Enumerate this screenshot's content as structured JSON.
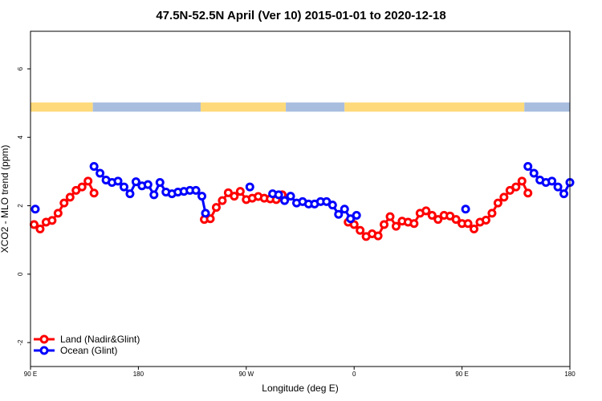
{
  "chart_data": {
    "type": "line",
    "title": "47.5N-52.5N April (Ver 10)   2015-01-01 to 2020-12-18",
    "xlabel": "Longitude (deg E)",
    "ylabel": "XCO2 - MLO trend (ppm)",
    "xlim": [
      90,
      540
    ],
    "ylim": [
      -2.7,
      7.1
    ],
    "x_ticks": [
      {
        "value": 90,
        "label": "90 E"
      },
      {
        "value": 180,
        "label": "180"
      },
      {
        "value": 270,
        "label": "90 W"
      },
      {
        "value": 360,
        "label": "0"
      },
      {
        "value": 450,
        "label": "90 E"
      },
      {
        "value": 540,
        "label": "180"
      }
    ],
    "y_ticks": [
      {
        "value": -2,
        "label": "-2"
      },
      {
        "value": 0,
        "label": "0"
      },
      {
        "value": 2,
        "label": "2"
      },
      {
        "value": 4,
        "label": "4"
      },
      {
        "value": 6,
        "label": "6"
      }
    ],
    "surface_strip": {
      "y_range": [
        4.75,
        5.02
      ],
      "land_color": "#FFDA7A",
      "ocean_color": "#A9BEDF",
      "segments": [
        {
          "type": "land",
          "from": 90,
          "to": 142
        },
        {
          "type": "ocean",
          "from": 142,
          "to": 232
        },
        {
          "type": "land",
          "from": 232,
          "to": 303
        },
        {
          "type": "ocean",
          "from": 303,
          "to": 352
        },
        {
          "type": "land",
          "from": 352,
          "to": 502
        },
        {
          "type": "ocean",
          "from": 502,
          "to": 540
        }
      ]
    },
    "series": [
      {
        "name": "Land (Nadir&Glint)",
        "color": "#FF0000",
        "segments": [
          [
            [
              93,
              1.45
            ],
            [
              98,
              1.32
            ],
            [
              103,
              1.52
            ],
            [
              108,
              1.57
            ],
            [
              113,
              1.78
            ],
            [
              118,
              2.08
            ],
            [
              123,
              2.25
            ],
            [
              128,
              2.45
            ],
            [
              133,
              2.55
            ],
            [
              138,
              2.72
            ],
            [
              143,
              2.37
            ]
          ],
          [
            [
              235,
              1.6
            ],
            [
              240,
              1.62
            ],
            [
              245,
              1.95
            ],
            [
              250,
              2.15
            ],
            [
              255,
              2.38
            ],
            [
              260,
              2.28
            ],
            [
              265,
              2.42
            ],
            [
              270,
              2.18
            ],
            [
              275,
              2.22
            ],
            [
              280,
              2.27
            ],
            [
              285,
              2.22
            ],
            [
              290,
              2.2
            ],
            [
              295,
              2.18
            ],
            [
              300,
              2.32
            ]
          ],
          [
            [
              355,
              1.52
            ],
            [
              360,
              1.45
            ],
            [
              365,
              1.28
            ],
            [
              370,
              1.1
            ],
            [
              375,
              1.18
            ],
            [
              380,
              1.12
            ],
            [
              385,
              1.45
            ],
            [
              390,
              1.68
            ],
            [
              395,
              1.4
            ],
            [
              400,
              1.55
            ],
            [
              405,
              1.52
            ],
            [
              410,
              1.48
            ],
            [
              415,
              1.78
            ],
            [
              420,
              1.85
            ],
            [
              425,
              1.72
            ],
            [
              430,
              1.6
            ],
            [
              435,
              1.72
            ],
            [
              440,
              1.7
            ],
            [
              445,
              1.6
            ],
            [
              450,
              1.48
            ],
            [
              455,
              1.48
            ],
            [
              460,
              1.32
            ],
            [
              465,
              1.52
            ],
            [
              470,
              1.58
            ],
            [
              475,
              1.78
            ],
            [
              480,
              2.08
            ],
            [
              485,
              2.25
            ],
            [
              490,
              2.45
            ],
            [
              495,
              2.55
            ],
            [
              500,
              2.72
            ],
            [
              505,
              2.37
            ]
          ]
        ]
      },
      {
        "name": "Ocean (Glint)",
        "color": "#0000FF",
        "segments": [
          [
            [
              94,
              1.9
            ]
          ],
          [
            [
              143,
              3.15
            ],
            [
              148,
              2.95
            ],
            [
              153,
              2.75
            ],
            [
              158,
              2.68
            ],
            [
              163,
              2.72
            ],
            [
              168,
              2.55
            ],
            [
              173,
              2.35
            ],
            [
              178,
              2.7
            ],
            [
              183,
              2.58
            ],
            [
              188,
              2.62
            ],
            [
              193,
              2.32
            ],
            [
              198,
              2.68
            ],
            [
              203,
              2.4
            ],
            [
              208,
              2.35
            ],
            [
              213,
              2.4
            ],
            [
              218,
              2.42
            ],
            [
              223,
              2.45
            ],
            [
              228,
              2.45
            ],
            [
              233,
              2.28
            ],
            [
              236,
              1.78
            ]
          ],
          [
            [
              273,
              2.55
            ]
          ],
          [
            [
              292,
              2.35
            ],
            [
              297,
              2.32
            ],
            [
              302,
              2.15
            ],
            [
              307,
              2.28
            ],
            [
              312,
              2.08
            ],
            [
              317,
              2.12
            ],
            [
              322,
              2.05
            ],
            [
              327,
              2.05
            ],
            [
              332,
              2.12
            ],
            [
              337,
              2.12
            ],
            [
              342,
              2.02
            ],
            [
              347,
              1.75
            ],
            [
              352,
              1.9
            ],
            [
              357,
              1.62
            ],
            [
              362,
              1.72
            ]
          ],
          [
            [
              453,
              1.9
            ]
          ],
          [
            [
              505,
              3.15
            ],
            [
              510,
              2.95
            ],
            [
              515,
              2.75
            ],
            [
              520,
              2.68
            ],
            [
              525,
              2.72
            ],
            [
              530,
              2.55
            ],
            [
              535,
              2.35
            ],
            [
              540,
              2.68
            ]
          ]
        ]
      }
    ],
    "legend": "bottom-left"
  }
}
